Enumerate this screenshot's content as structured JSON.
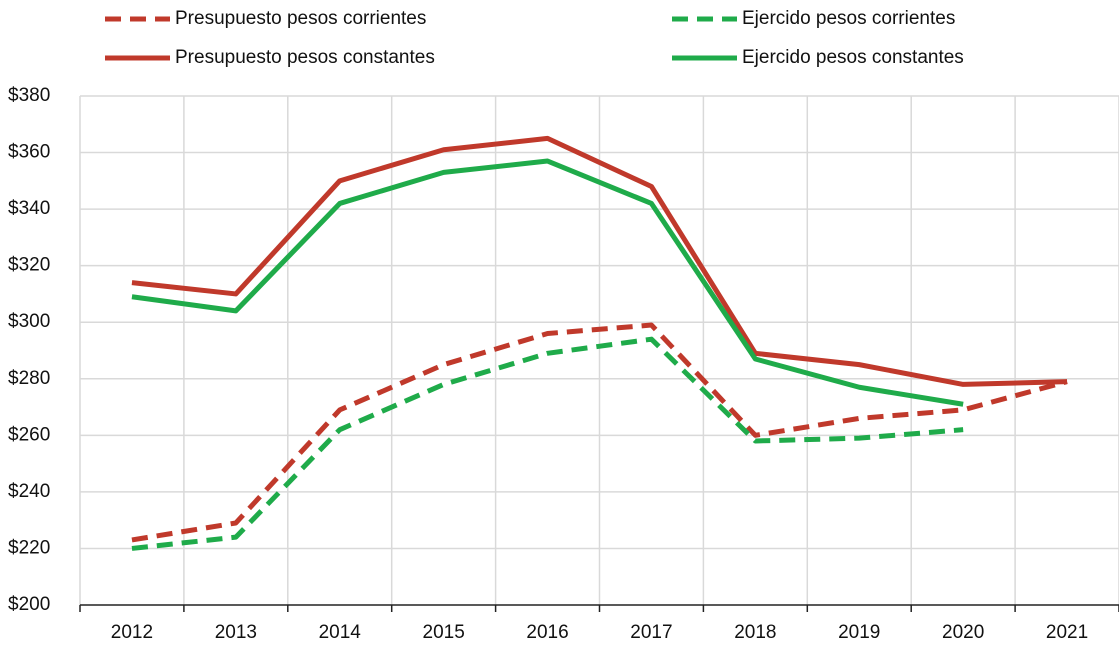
{
  "chart_data": {
    "type": "line",
    "categories": [
      "2012",
      "2013",
      "2014",
      "2015",
      "2016",
      "2017",
      "2018",
      "2019",
      "2020",
      "2021"
    ],
    "series": [
      {
        "name": "Presupuesto pesos corrientes",
        "color": "#c0392b",
        "linestyle": "dashed",
        "values": [
          223,
          229,
          269,
          285,
          296,
          299,
          260,
          266,
          269,
          279
        ]
      },
      {
        "name": "Ejercido pesos corrientes",
        "color": "#1fab4a",
        "linestyle": "dashed",
        "values": [
          220,
          224,
          262,
          278,
          289,
          294,
          258,
          259,
          262,
          null
        ]
      },
      {
        "name": "Presupuesto pesos constantes",
        "color": "#c0392b",
        "linestyle": "solid",
        "values": [
          314,
          310,
          350,
          361,
          365,
          348,
          289,
          285,
          278,
          279
        ]
      },
      {
        "name": "Ejercido pesos constantes",
        "color": "#1fab4a",
        "linestyle": "solid",
        "values": [
          309,
          304,
          342,
          353,
          357,
          342,
          287,
          277,
          271,
          null
        ]
      }
    ],
    "ylim": [
      200,
      380
    ],
    "yticks": [
      {
        "value": 200,
        "label": "$200"
      },
      {
        "value": 220,
        "label": "$220"
      },
      {
        "value": 240,
        "label": "$240"
      },
      {
        "value": 260,
        "label": "$260"
      },
      {
        "value": 280,
        "label": "$280"
      },
      {
        "value": 300,
        "label": "$300"
      },
      {
        "value": 320,
        "label": "$320"
      },
      {
        "value": 340,
        "label": "$340"
      },
      {
        "value": 360,
        "label": "$360"
      },
      {
        "value": 380,
        "label": "$380"
      }
    ],
    "grid": true
  }
}
